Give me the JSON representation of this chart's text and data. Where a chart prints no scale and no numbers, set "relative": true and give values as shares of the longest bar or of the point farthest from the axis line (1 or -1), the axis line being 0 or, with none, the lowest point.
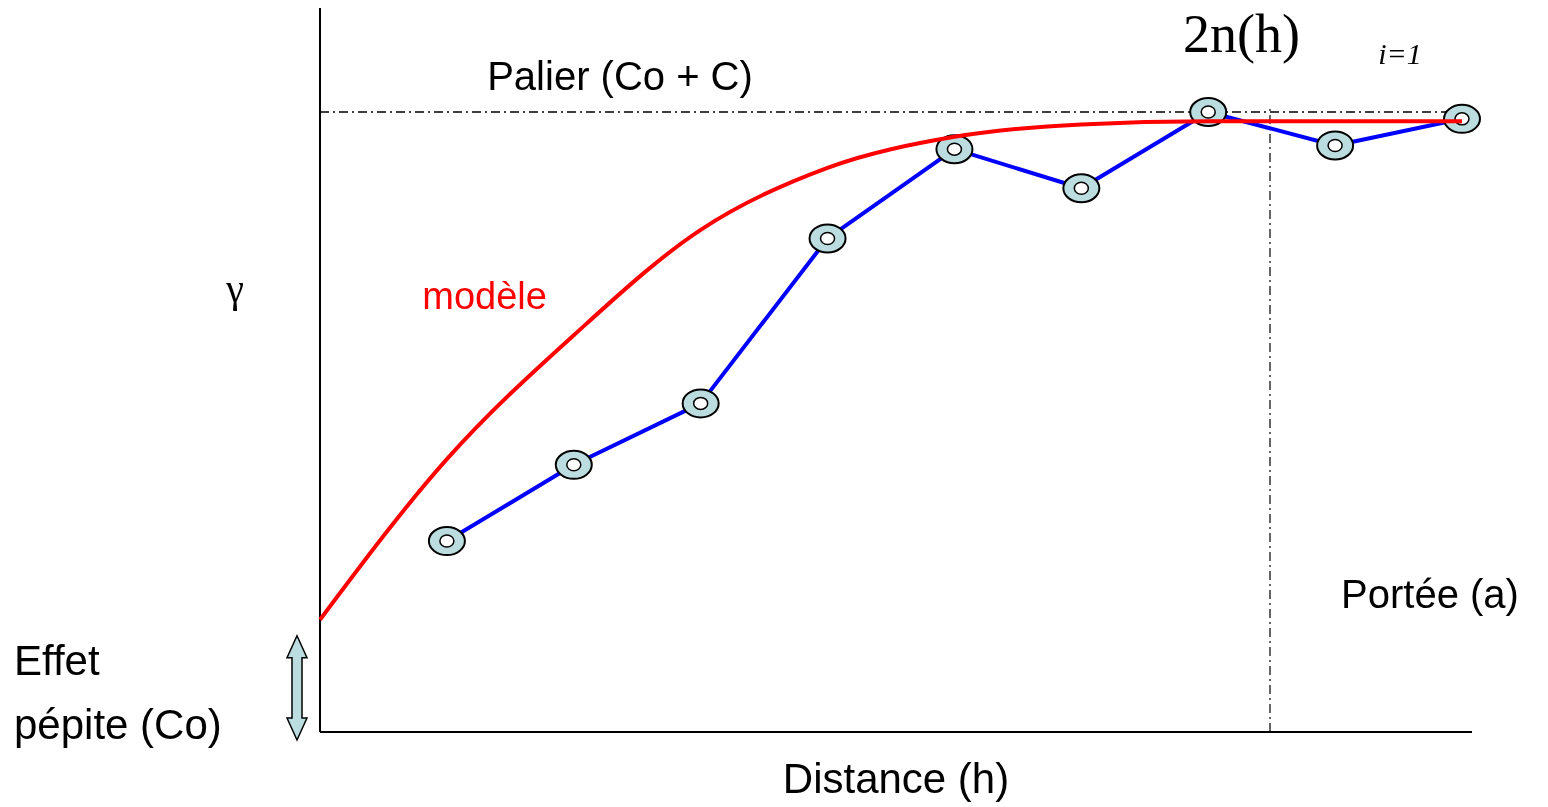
{
  "chart_data": {
    "type": "line",
    "relative": true,
    "xlabel": "Distance (h)",
    "ylabel": "γ",
    "grid": false,
    "legend": false,
    "categories": [
      null,
      null,
      null,
      null,
      null,
      null,
      null,
      null,
      null,
      null
    ],
    "series": [
      {
        "color": "#0000ff",
        "marker": "circle",
        "values": [
          null,
          0.308,
          0.431,
          0.53,
          0.796,
          0.94,
          0.877,
          1.0,
          0.946,
          0.989
        ]
      },
      {
        "name": "modèle",
        "color": "#ff0000",
        "marker": "none",
        "values": [
          0.181,
          0.44,
          0.64,
          0.81,
          0.91,
          0.96,
          0.98,
          0.985,
          0.985,
          0.985
        ]
      }
    ],
    "ref_lines": [
      {
        "axis": "y",
        "value": 1,
        "label": "Palier (Co + C)",
        "line_style": "dashed",
        "color": "#000000"
      },
      {
        "axis": "x",
        "label": "Portée (a)",
        "line_style": "dashed",
        "color": "#000000"
      }
    ],
    "annotations": [
      "Effet pépite (Co)",
      "2n(h)",
      "i=1"
    ]
  }
}
